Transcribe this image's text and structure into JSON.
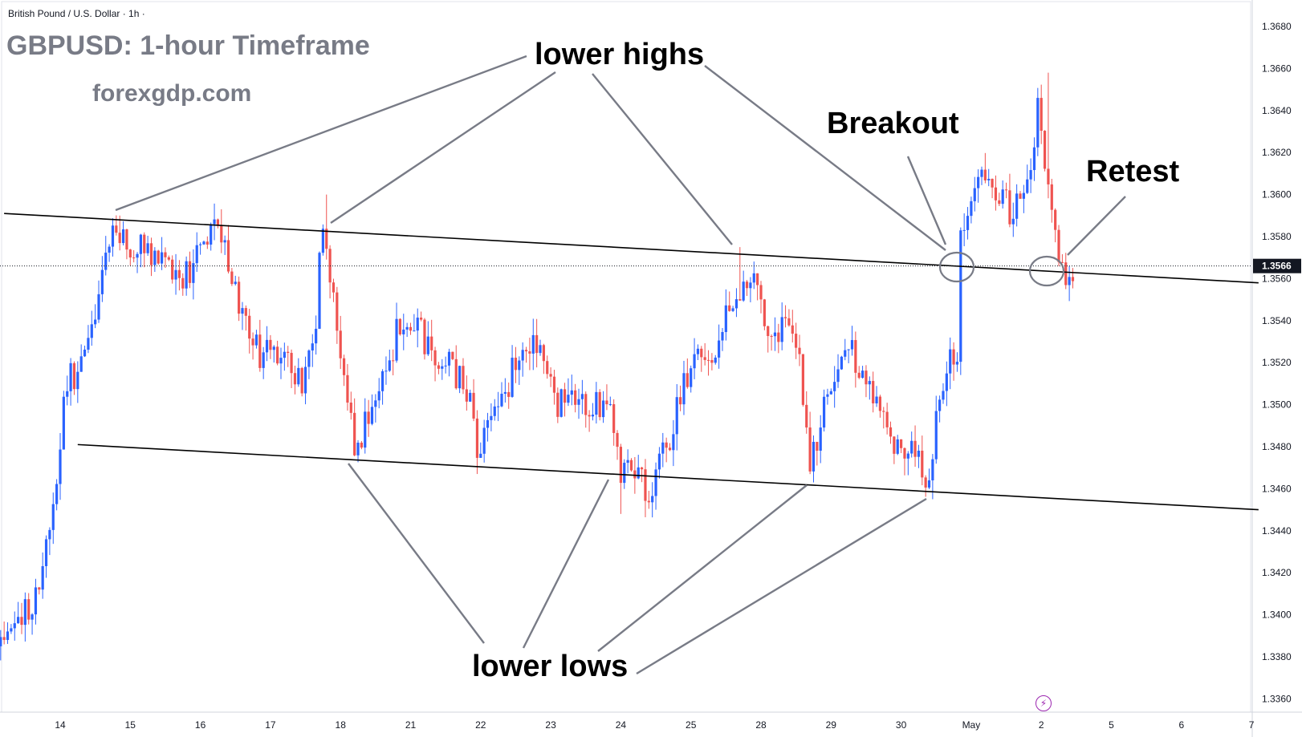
{
  "header": {
    "symbol": "British Pound / U.S. Dollar · 1h ·",
    "title": "GBPUSD: 1-hour Timeframe",
    "site": "forexgdp.com"
  },
  "annotations": {
    "lower_highs": "lower highs",
    "lower_lows": "lower lows",
    "breakout": "Breakout",
    "retest": "Retest"
  },
  "colors": {
    "up": "#2962ff",
    "down": "#ef5350",
    "trendline": "#000000",
    "pointer": "#787b86",
    "price_tag": "#131722",
    "event_icon": "#9c27b0"
  },
  "icons": {
    "event": "flash-icon"
  },
  "chart_data": {
    "type": "candlestick",
    "title": "GBPUSD: 1-hour Timeframe",
    "symbol": "British Pound / U.S. Dollar",
    "interval": "1h",
    "ylim": [
      1.3355,
      1.3695
    ],
    "x_domain": [
      -1.0,
      17.0
    ],
    "yticks": [
      "1.3680",
      "1.3660",
      "1.3640",
      "1.3620",
      "1.3600",
      "1.3580",
      "1.3560",
      "1.3540",
      "1.3520",
      "1.3500",
      "1.3480",
      "1.3460",
      "1.3440",
      "1.3420",
      "1.3400",
      "1.3380",
      "1.3360"
    ],
    "xticks": [
      {
        "label": "14",
        "x": 0
      },
      {
        "label": "15",
        "x": 1
      },
      {
        "label": "16",
        "x": 2
      },
      {
        "label": "17",
        "x": 3
      },
      {
        "label": "18",
        "x": 4
      },
      {
        "label": "21",
        "x": 5
      },
      {
        "label": "22",
        "x": 6
      },
      {
        "label": "23",
        "x": 7
      },
      {
        "label": "24",
        "x": 8
      },
      {
        "label": "25",
        "x": 9
      },
      {
        "label": "28",
        "x": 10
      },
      {
        "label": "29",
        "x": 11
      },
      {
        "label": "30",
        "x": 12
      },
      {
        "label": "May",
        "x": 13
      },
      {
        "label": "2",
        "x": 14
      },
      {
        "label": "5",
        "x": 15
      },
      {
        "label": "6",
        "x": 16
      },
      {
        "label": "7",
        "x": 17
      }
    ],
    "last_price": "1.3566",
    "price_waypoints": [
      [
        -0.85,
        1.3385
      ],
      [
        -0.3,
        1.341
      ],
      [
        -0.1,
        1.344
      ],
      [
        0.15,
        1.351
      ],
      [
        0.45,
        1.3525
      ],
      [
        0.7,
        1.3565
      ],
      [
        0.8,
        1.3588
      ],
      [
        1.0,
        1.3572
      ],
      [
        1.2,
        1.3575
      ],
      [
        1.6,
        1.3568
      ],
      [
        1.8,
        1.356
      ],
      [
        2.0,
        1.357
      ],
      [
        2.3,
        1.3585
      ],
      [
        2.5,
        1.356
      ],
      [
        2.7,
        1.354
      ],
      [
        2.9,
        1.3525
      ],
      [
        3.3,
        1.352
      ],
      [
        3.5,
        1.3508
      ],
      [
        3.7,
        1.3535
      ],
      [
        3.78,
        1.3585
      ],
      [
        3.9,
        1.356
      ],
      [
        4.05,
        1.352
      ],
      [
        4.25,
        1.348
      ],
      [
        4.55,
        1.35
      ],
      [
        4.75,
        1.352
      ],
      [
        4.9,
        1.354
      ],
      [
        5.3,
        1.353
      ],
      [
        5.7,
        1.3515
      ],
      [
        5.9,
        1.3505
      ],
      [
        6.0,
        1.348
      ],
      [
        6.25,
        1.3495
      ],
      [
        6.55,
        1.352
      ],
      [
        6.85,
        1.353
      ],
      [
        7.1,
        1.35
      ],
      [
        7.4,
        1.3505
      ],
      [
        7.6,
        1.3495
      ],
      [
        7.85,
        1.3505
      ],
      [
        8.05,
        1.347
      ],
      [
        8.25,
        1.3468
      ],
      [
        8.45,
        1.346
      ],
      [
        8.6,
        1.347
      ],
      [
        8.8,
        1.349
      ],
      [
        9.0,
        1.3515
      ],
      [
        9.15,
        1.353
      ],
      [
        9.35,
        1.3518
      ],
      [
        9.55,
        1.3545
      ],
      [
        9.7,
        1.3555
      ],
      [
        9.9,
        1.3565
      ],
      [
        10.0,
        1.355
      ],
      [
        10.15,
        1.3535
      ],
      [
        10.4,
        1.3535
      ],
      [
        10.6,
        1.352
      ],
      [
        10.7,
        1.349
      ],
      [
        10.75,
        1.3468
      ],
      [
        10.95,
        1.35
      ],
      [
        11.15,
        1.3518
      ],
      [
        11.35,
        1.3525
      ],
      [
        11.6,
        1.351
      ],
      [
        11.8,
        1.35
      ],
      [
        11.95,
        1.348
      ],
      [
        12.1,
        1.347
      ],
      [
        12.2,
        1.3485
      ],
      [
        12.35,
        1.347
      ],
      [
        12.45,
        1.3458
      ],
      [
        12.6,
        1.3505
      ],
      [
        12.75,
        1.3525
      ],
      [
        12.85,
        1.352
      ],
      [
        12.9,
        1.3575
      ],
      [
        12.95,
        1.359
      ],
      [
        13.2,
        1.3605
      ],
      [
        13.45,
        1.3603
      ],
      [
        13.6,
        1.3592
      ],
      [
        13.8,
        1.36
      ],
      [
        13.9,
        1.3615
      ],
      [
        14.0,
        1.364
      ],
      [
        14.1,
        1.362
      ],
      [
        14.2,
        1.3598
      ],
      [
        14.3,
        1.357
      ],
      [
        14.38,
        1.3562
      ],
      [
        14.45,
        1.3566
      ]
    ],
    "spikes": [
      {
        "x": 0.85,
        "high": 1.359
      },
      {
        "x": 2.3,
        "high": 1.3593
      },
      {
        "x": 3.78,
        "high": 1.36
      },
      {
        "x": 9.7,
        "high": 1.3575
      },
      {
        "x": 14.1,
        "high": 1.3658
      },
      {
        "x": 8.0,
        "low": 1.3448
      },
      {
        "x": 8.45,
        "low": 1.3453
      },
      {
        "x": 12.45,
        "low": 1.3455
      },
      {
        "x": 10.75,
        "low": 1.3463
      }
    ],
    "trendlines": [
      {
        "name": "upper",
        "from": [
          -0.8,
          1.3591
        ],
        "to": [
          17.1,
          1.3558
        ]
      },
      {
        "name": "lower",
        "from": [
          0.25,
          1.3481
        ],
        "to": [
          17.1,
          1.345
        ]
      }
    ]
  }
}
